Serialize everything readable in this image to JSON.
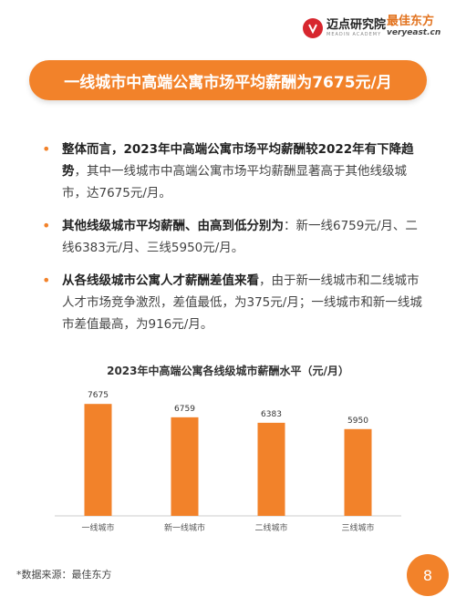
{
  "brand": {
    "left_name": "迈点研究院",
    "left_sub": "MEADIN ACADEMY",
    "right_name": "最佳东方",
    "right_sub": "veryeast.cn"
  },
  "title": "一线城市中高端公寓市场平均薪酬为7675元/月",
  "bullets": [
    {
      "bold": "整体而言，2023年中高端公寓市场平均薪酬较2022年有下降趋势",
      "text": "，其中一线城市中高端公寓市场平均薪酬显著高于其他线级城市，达7675元/月。"
    },
    {
      "bold": "其他线级城市平均薪酬、由高到低分别为",
      "text": "：新一线6759元/月、二线6383元/月、三线5950元/月。"
    },
    {
      "bold": "从各线级城市公寓人才薪酬差值来看",
      "text": "，由于新一线城市和二线城市人才市场竞争激烈，差值最低，为375元/月；一线城市和新一线城市差值最高，为916元/月。"
    }
  ],
  "chart_data": {
    "type": "bar",
    "title": "2023年中高端公寓各线级城市薪酬水平（元/月）",
    "categories": [
      "一线城市",
      "新一线城市",
      "二线城市",
      "三线城市"
    ],
    "values": [
      7675,
      6759,
      6383,
      5950
    ],
    "ylim": [
      0,
      8500
    ],
    "grid": false,
    "bar_color": "#f2822a"
  },
  "footer": {
    "source": "*数据来源：最佳东方",
    "page": "8"
  }
}
